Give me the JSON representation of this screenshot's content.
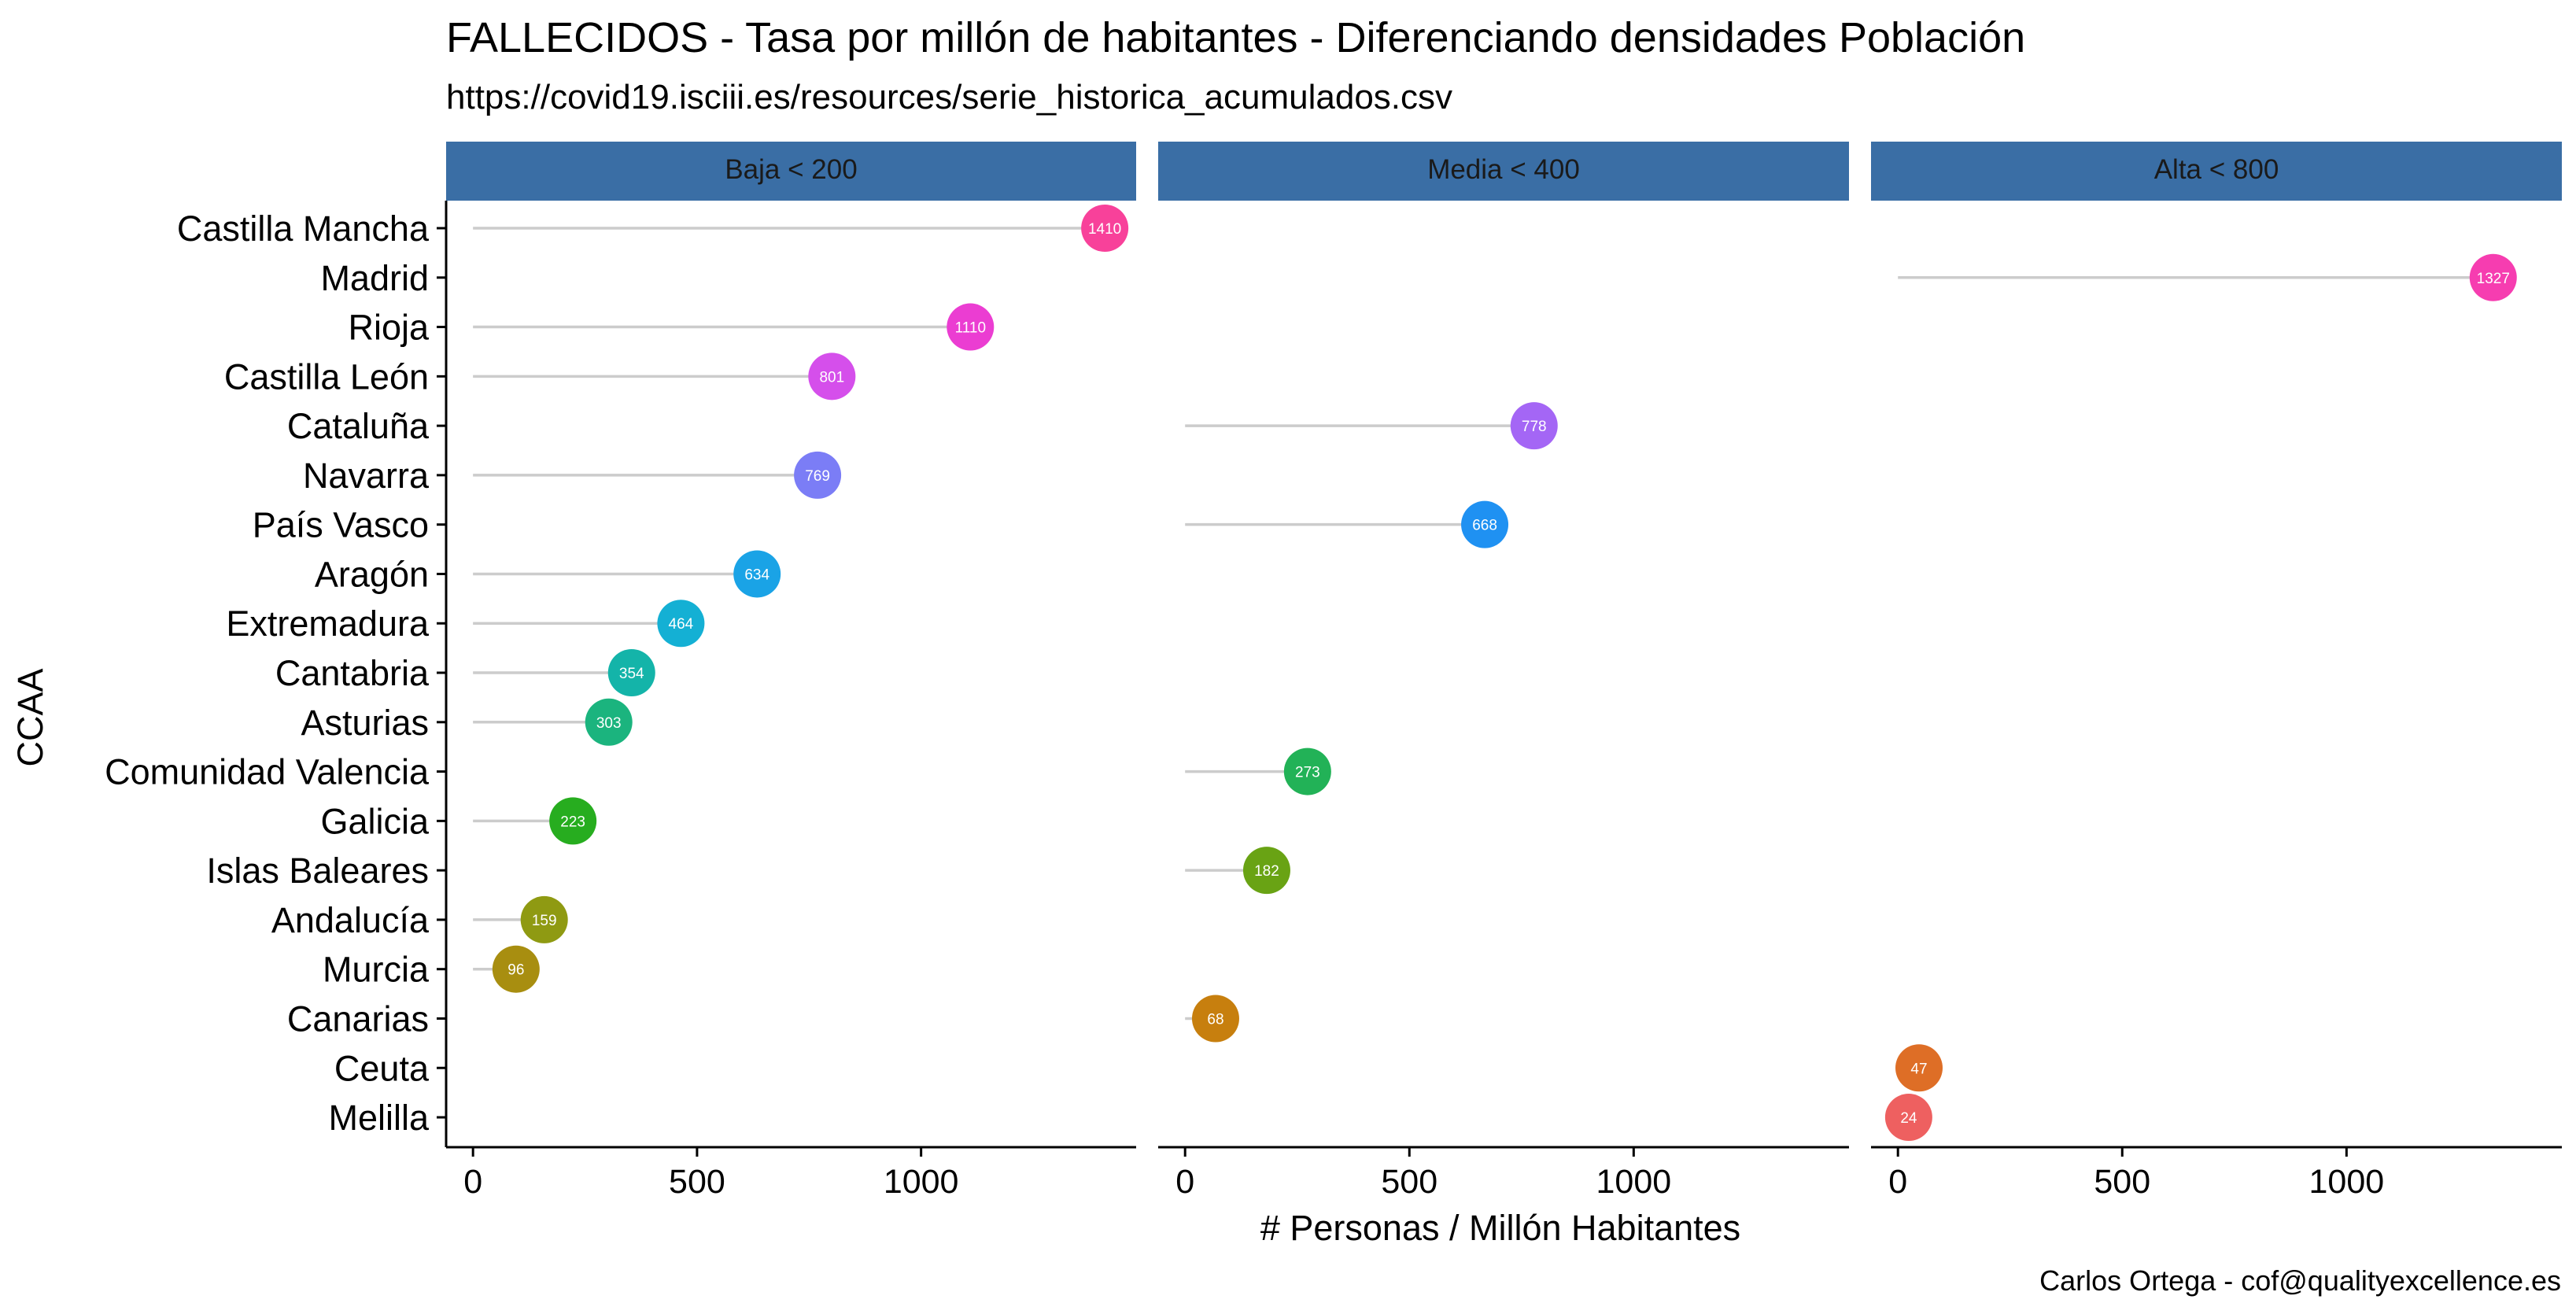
{
  "chart_data": {
    "type": "lollipop",
    "title": "FALLECIDOS - Tasa por millón de habitantes - Diferenciando densidades Población",
    "subtitle": "https://covid19.isciii.es/resources/serie_historica_acumulados.csv",
    "caption": "Carlos Ortega - cof@qualityexcellence.es",
    "xlabel": "# Personas / Millón Habitantes",
    "ylabel": "CCAA",
    "xlim": [
      -60,
      1480
    ],
    "x_ticks": [
      0,
      500,
      1000
    ],
    "grid": false,
    "legend": "none",
    "facets": [
      "Baja < 200",
      "Media < 400",
      "Alta < 800"
    ],
    "categories": [
      "Castilla Mancha",
      "Madrid",
      "Rioja",
      "Castilla León",
      "Cataluña",
      "Navarra",
      "País Vasco",
      "Aragón",
      "Extremadura",
      "Cantabria",
      "Asturias",
      "Comunidad Valencia",
      "Galicia",
      "Islas Baleares",
      "Andalucía",
      "Murcia",
      "Canarias",
      "Ceuta",
      "Melilla"
    ],
    "points": [
      {
        "ccaa": "Castilla Mancha",
        "facet": "Baja < 200",
        "value": 1410,
        "label": "1410",
        "color": "#F8419A"
      },
      {
        "ccaa": "Madrid",
        "facet": "Alta < 800",
        "value": 1327,
        "label": "1327",
        "color": "#F63DB0"
      },
      {
        "ccaa": "Rioja",
        "facet": "Baja < 200",
        "value": 1110,
        "label": "1110",
        "color": "#EB3DD2"
      },
      {
        "ccaa": "Castilla León",
        "facet": "Baja < 200",
        "value": 801,
        "label": "801",
        "color": "#D54FEB"
      },
      {
        "ccaa": "Cataluña",
        "facet": "Media < 400",
        "value": 778,
        "label": "778",
        "color": "#A466F5"
      },
      {
        "ccaa": "Navarra",
        "facet": "Baja < 200",
        "value": 769,
        "label": "769",
        "color": "#7B7DF6"
      },
      {
        "ccaa": "País Vasco",
        "facet": "Media < 400",
        "value": 668,
        "label": "668",
        "color": "#1F91F2"
      },
      {
        "ccaa": "Aragón",
        "facet": "Baja < 200",
        "value": 634,
        "label": "634",
        "color": "#1AA3E6"
      },
      {
        "ccaa": "Extremadura",
        "facet": "Baja < 200",
        "value": 464,
        "label": "464",
        "color": "#14B0D4"
      },
      {
        "ccaa": "Cantabria",
        "facet": "Baja < 200",
        "value": 354,
        "label": "354",
        "color": "#14B4A9"
      },
      {
        "ccaa": "Asturias",
        "facet": "Baja < 200",
        "value": 303,
        "label": "303",
        "color": "#1BB47E"
      },
      {
        "ccaa": "Comunidad Valencia",
        "facet": "Media < 400",
        "value": 273,
        "label": "273",
        "color": "#22B257"
      },
      {
        "ccaa": "Galicia",
        "facet": "Baja < 200",
        "value": 223,
        "label": "223",
        "color": "#27AD1F"
      },
      {
        "ccaa": "Islas Baleares",
        "facet": "Media < 400",
        "value": 182,
        "label": "182",
        "color": "#69A314"
      },
      {
        "ccaa": "Andalucía",
        "facet": "Baja < 200",
        "value": 159,
        "label": "159",
        "color": "#8F9A12"
      },
      {
        "ccaa": "Murcia",
        "facet": "Baja < 200",
        "value": 96,
        "label": "96",
        "color": "#A88E10"
      },
      {
        "ccaa": "Canarias",
        "facet": "Media < 400",
        "value": 68,
        "label": "68",
        "color": "#C77F0E"
      },
      {
        "ccaa": "Ceuta",
        "facet": "Alta < 800",
        "value": 47,
        "label": "47",
        "color": "#DE6E26"
      },
      {
        "ccaa": "Melilla",
        "facet": "Alta < 800",
        "value": 24,
        "label": "24",
        "color": "#EE6060"
      }
    ]
  },
  "colors": {
    "strip_fill": "#3A6EA5",
    "segment": "#CCCCCC",
    "axis": "#000000"
  }
}
